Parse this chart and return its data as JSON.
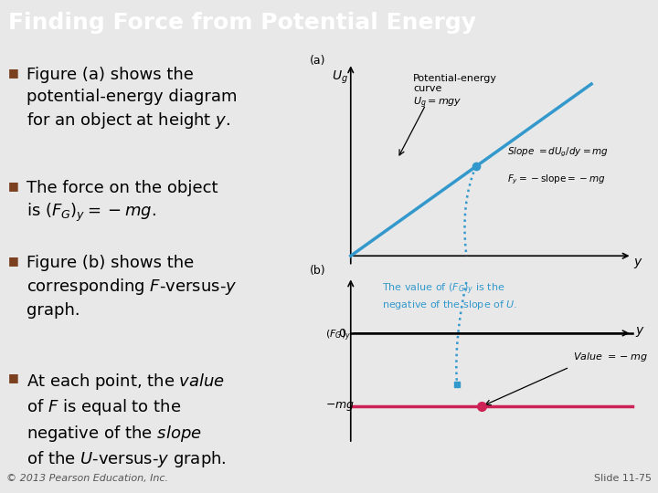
{
  "title": "Finding Force from Potential Energy",
  "title_bg": "#4040a0",
  "title_color": "#ffffff",
  "title_fontsize": 18,
  "slide_bg": "#e8e8e8",
  "content_bg": "#e8e8e8",
  "bullet_color": "#7a4020",
  "bullet_fontsize": 13,
  "line_color_blue": "#3399cc",
  "line_color_red": "#cc2255",
  "dot_color_blue": "#3399cc",
  "dot_color_red": "#cc2255",
  "annotation_color_blue": "#3399cc",
  "footer_left": "© 2013 Pearson Education, Inc.",
  "footer_right": "Slide 11-75",
  "footer_fontsize": 8
}
